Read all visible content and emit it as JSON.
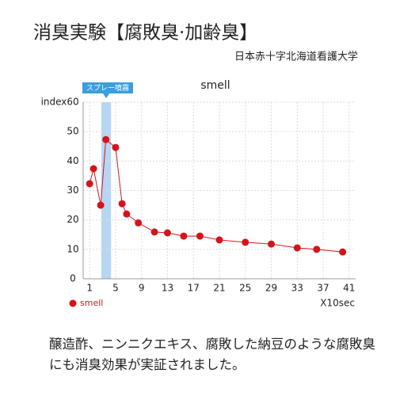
{
  "chart_data": {
    "type": "line",
    "page_title": "消臭実験【腐敗臭·加齢臭】",
    "subtitle": "日本赤十字北海道看護大学",
    "title": "smell",
    "y_label": "index",
    "x_label": "X10sec",
    "annotation": {
      "label": "スプレー噴霧",
      "x": [
        2.8,
        4.3
      ],
      "color": "#b7d6f3",
      "label_color": "#3a9fdc"
    },
    "x": [
      1,
      1.6,
      2.7,
      3.5,
      5,
      6,
      6.7,
      8.5,
      11,
      13,
      15.5,
      18,
      21,
      25,
      29,
      33,
      36,
      40
    ],
    "series": [
      {
        "name": "smell",
        "color": "#d4141b",
        "values": [
          32.3,
          37.4,
          25,
          47.3,
          44.6,
          25.5,
          22,
          19,
          15.9,
          15.6,
          14.5,
          14.5,
          13.2,
          12.4,
          11.8,
          10.5,
          10,
          9.1
        ]
      }
    ],
    "xlim": [
      0,
      42
    ],
    "xticks": [
      1,
      5,
      9,
      13,
      17,
      21,
      25,
      29,
      33,
      37,
      41
    ],
    "ylim": [
      0,
      60
    ],
    "yticks": [
      0,
      10,
      20,
      30,
      40,
      50,
      60
    ],
    "grid": true,
    "legend": "bottom-left",
    "caption": "醸造酢、ニンニクエキス、腐敗した納豆のような腐敗臭にも消臭効果が実証されました。"
  }
}
